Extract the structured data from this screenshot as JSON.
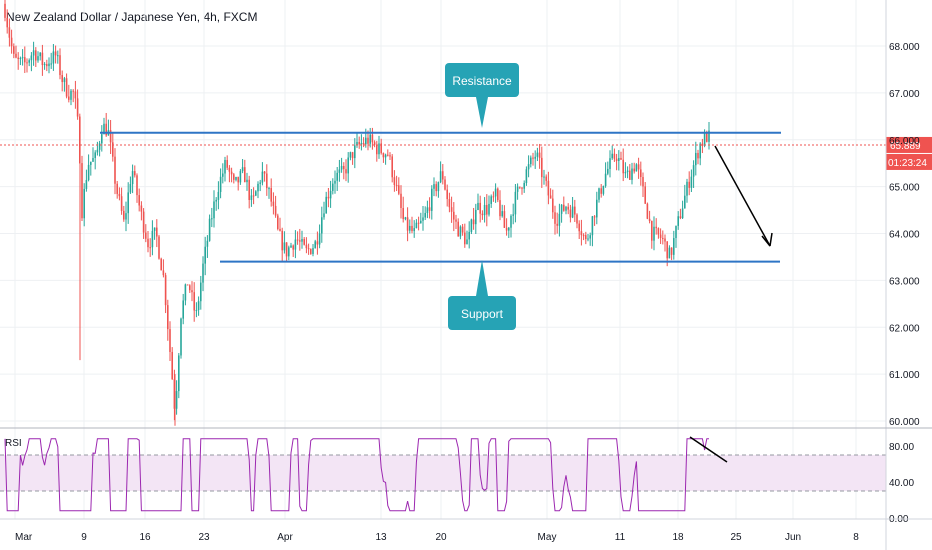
{
  "header": {
    "title": "New Zealand Dollar / Japanese Yen, 4h, FXCM"
  },
  "colors": {
    "bull": "#26a69a",
    "bear": "#ef5350",
    "trend": "#2e75c5",
    "callout": "#26a3b5",
    "last_price": "#ef5350",
    "rsi": "#9c27b0",
    "rsi_band": "#f3e5f5",
    "grid": "#eef0f3"
  },
  "chart_data": {
    "type": "candlestick",
    "symbol": "New Zealand Dollar / Japanese Yen",
    "interval": "4h",
    "source": "FXCM",
    "price_axis": {
      "ticks": [
        "68.000",
        "67.000",
        "66.000",
        "65.000",
        "64.000",
        "63.000",
        "62.000",
        "61.000",
        "60.000"
      ],
      "range": [
        59.9,
        68.9
      ]
    },
    "time_axis": {
      "ticks": [
        "Mar",
        "9",
        "16",
        "23",
        "Apr",
        "13",
        "20",
        "May",
        "11",
        "18",
        "25",
        "Jun",
        "8"
      ]
    },
    "last_price": "65.889",
    "countdown": "01:23:24",
    "annotations": {
      "resistance_label": "Resistance",
      "support_label": "Support",
      "resistance_level": 66.15,
      "support_level": 63.4
    },
    "rsi": {
      "label": "RSI",
      "ticks": [
        "80.00",
        "40.00",
        "0.00"
      ],
      "upper": 70,
      "lower": 30
    }
  }
}
